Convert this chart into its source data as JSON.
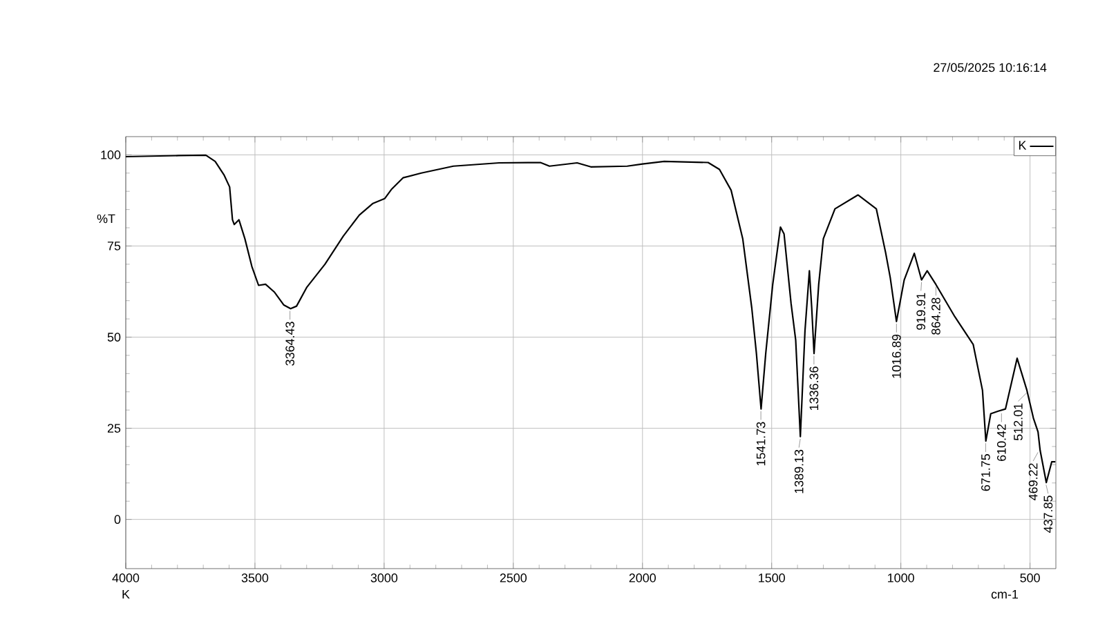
{
  "chart_data": {
    "type": "line",
    "xlabel": "cm-1",
    "ylabel": "%T",
    "xlim": [
      4000,
      400
    ],
    "ylim": [
      -13.5,
      105
    ],
    "xticks": [
      4000,
      3500,
      3000,
      2500,
      2000,
      1500,
      1000,
      500
    ],
    "yticks": [
      0,
      25,
      50,
      75,
      100
    ],
    "grid": true,
    "legend": "top right",
    "marker": "none",
    "line_style": "solid",
    "series": [
      {
        "name": "K",
        "color": "#000000",
        "x": [
          4000,
          3796,
          3690,
          3654,
          3619,
          3598,
          3587,
          3580,
          3562,
          3539,
          3512,
          3486,
          3459,
          3424,
          3388,
          3362,
          3339,
          3300,
          3229,
          3158,
          3096,
          3043,
          2998,
          2972,
          2927,
          2856,
          2732,
          2555,
          2395,
          2360,
          2253,
          2200,
          2059,
          2000,
          1916,
          1746,
          1702,
          1657,
          1612,
          1577,
          1559,
          1541,
          1523,
          1496,
          1466,
          1452,
          1425,
          1407,
          1389,
          1371,
          1354,
          1345,
          1336,
          1318,
          1300,
          1255,
          1166,
          1095,
          1059,
          1041,
          1017,
          987,
          948,
          920,
          898,
          864,
          791,
          720,
          684,
          671,
          652,
          623,
          595,
          550,
          512,
          487,
          469,
          461,
          437,
          416,
          402
        ],
        "values": [
          99.5,
          99.8,
          99.9,
          98.2,
          94.4,
          91.2,
          82.2,
          80.9,
          82.2,
          77,
          69.4,
          64.2,
          64.5,
          62.3,
          58.8,
          57.8,
          58.5,
          63.6,
          70,
          77.7,
          83.5,
          86.7,
          88,
          90.5,
          93.7,
          95,
          96.9,
          97.8,
          97.9,
          96.9,
          97.8,
          96.7,
          96.9,
          97.5,
          98.2,
          97.9,
          96,
          90.3,
          77,
          58,
          45.5,
          30.3,
          45.5,
          64.4,
          80.2,
          78.3,
          59.3,
          49.2,
          22.7,
          51.8,
          68.2,
          58.1,
          45.5,
          64.4,
          77,
          85.2,
          89,
          85.2,
          73.2,
          66.3,
          54.3,
          65.7,
          73,
          65.7,
          68.2,
          64.4,
          55.6,
          48,
          35.4,
          21.5,
          29,
          29.7,
          30.3,
          44.2,
          35.4,
          27.8,
          24,
          19,
          10.1,
          15.8,
          15.8
        ]
      }
    ],
    "annotations": [
      "27/05/2025 10:16:14",
      "K",
      {
        "text": "3364.43",
        "x": 3364.43,
        "y": 57.8
      },
      {
        "text": "1541.73",
        "x": 1541.73,
        "y": 30.3
      },
      {
        "text": "1389.13",
        "x": 1389.13,
        "y": 22.7
      },
      {
        "text": "1336.36",
        "x": 1336.36,
        "y": 45.5
      },
      {
        "text": "1016.89",
        "x": 1016.89,
        "y": 54.3
      },
      {
        "text": "919.91",
        "x": 919.91,
        "y": 65.7
      },
      {
        "text": "864.28",
        "x": 864.28,
        "y": 64.4
      },
      {
        "text": "671.75",
        "x": 671.75,
        "y": 21.5
      },
      {
        "text": "610.42",
        "x": 610.42,
        "y": 29.7
      },
      {
        "text": "512.01",
        "x": 512.01,
        "y": 35.4
      },
      {
        "text": "469.22",
        "x": 469.22,
        "y": 19
      },
      {
        "text": "437.85",
        "x": 437.85,
        "y": 10.1
      }
    ]
  }
}
